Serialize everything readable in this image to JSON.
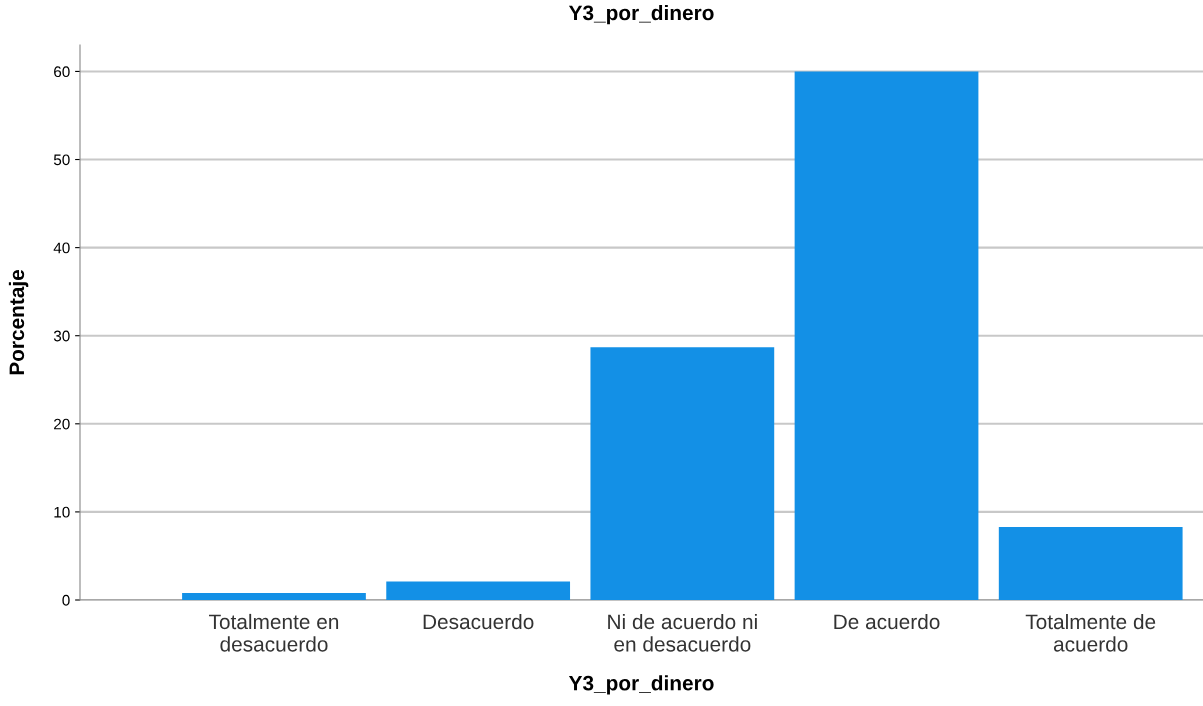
{
  "chart_data": {
    "type": "bar",
    "title": "Y3_por_dinero",
    "xlabel": "Y3_por_dinero",
    "ylabel": "Porcentaje",
    "categories": [
      "Totalmente en\ndesacuerdo",
      "Desacuerdo",
      "Ni de acuerdo ni\nen desacuerdo",
      "De acuerdo",
      "Totalmente de\nacuerdo"
    ],
    "values": [
      0.8,
      2.1,
      28.7,
      60.0,
      8.3
    ],
    "color": "#1390e6",
    "ylim": [
      0,
      63
    ],
    "yticks": [
      0,
      10,
      20,
      30,
      40,
      50,
      60
    ],
    "grid": "y"
  }
}
